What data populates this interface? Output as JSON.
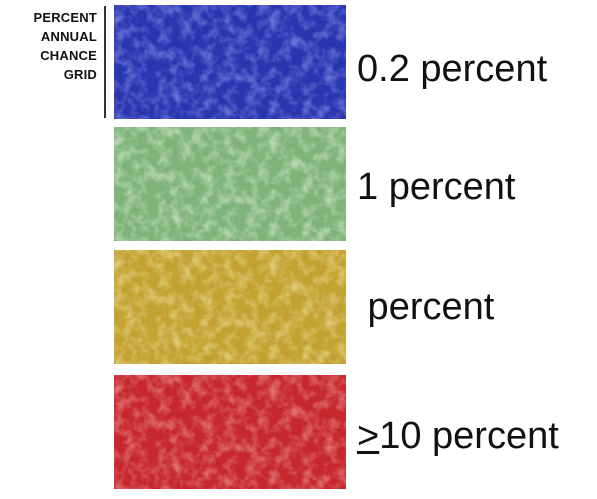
{
  "legend": {
    "title_lines": [
      "PERCENT",
      "ANNUAL",
      "CHANCE",
      "GRID"
    ],
    "items": [
      {
        "label_prefix": "",
        "label": "0.2 percent",
        "color": "#2a36b0"
      },
      {
        "label_prefix": "",
        "label": "1 percent",
        "color": "#7fb37a"
      },
      {
        "label_prefix": "",
        "label": " percent",
        "color": "#c4a232"
      },
      {
        "label_prefix": ">",
        "label": "10 percent",
        "color": "#c6282e"
      }
    ]
  }
}
